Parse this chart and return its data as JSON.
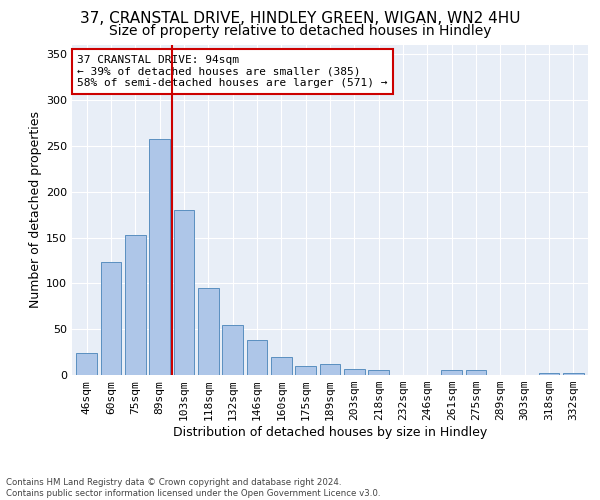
{
  "title1": "37, CRANSTAL DRIVE, HINDLEY GREEN, WIGAN, WN2 4HU",
  "title2": "Size of property relative to detached houses in Hindley",
  "xlabel": "Distribution of detached houses by size in Hindley",
  "ylabel": "Number of detached properties",
  "categories": [
    "46sqm",
    "60sqm",
    "75sqm",
    "89sqm",
    "103sqm",
    "118sqm",
    "132sqm",
    "146sqm",
    "160sqm",
    "175sqm",
    "189sqm",
    "203sqm",
    "218sqm",
    "232sqm",
    "246sqm",
    "261sqm",
    "275sqm",
    "289sqm",
    "303sqm",
    "318sqm",
    "332sqm"
  ],
  "values": [
    24,
    123,
    153,
    257,
    180,
    95,
    55,
    38,
    20,
    10,
    12,
    7,
    6,
    0,
    0,
    6,
    5,
    0,
    0,
    2,
    2
  ],
  "bar_color": "#aec6e8",
  "bar_edge_color": "#5a8fc0",
  "subject_line_color": "#cc0000",
  "subject_line_index": 3.5,
  "annotation_text": "37 CRANSTAL DRIVE: 94sqm\n← 39% of detached houses are smaller (385)\n58% of semi-detached houses are larger (571) →",
  "annotation_box_color": "#ffffff",
  "annotation_box_edge": "#cc0000",
  "ylim": [
    0,
    360
  ],
  "yticks": [
    0,
    50,
    100,
    150,
    200,
    250,
    300,
    350
  ],
  "bg_color": "#e8eef7",
  "footer": "Contains HM Land Registry data © Crown copyright and database right 2024.\nContains public sector information licensed under the Open Government Licence v3.0.",
  "title1_fontsize": 11,
  "title2_fontsize": 10,
  "xlabel_fontsize": 9,
  "ylabel_fontsize": 9,
  "tick_fontsize": 8
}
